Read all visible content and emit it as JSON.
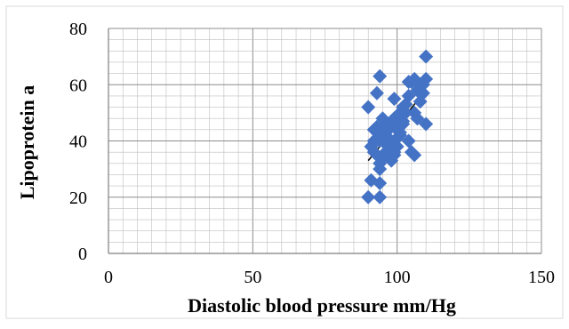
{
  "chart_data": {
    "type": "scatter",
    "title": "",
    "xlabel": "Diastolic blood pressure mm/Hg",
    "ylabel": "Lipoprotein a",
    "xlim": [
      0,
      150
    ],
    "ylim": [
      0,
      80
    ],
    "x_ticks": [
      "0",
      "50",
      "100",
      "150"
    ],
    "y_ticks": [
      "0",
      "20",
      "40",
      "60",
      "80"
    ],
    "x_major_step": 50,
    "y_major_step": 20,
    "grid": "major and minor gridlines",
    "legend": "none",
    "marker": "diamond",
    "colors": {
      "marker": "#4472C4",
      "trendline": "#000000",
      "grid": "#bfbfbf",
      "axis": "#7f7f7f"
    },
    "series": [
      {
        "x": [
          90,
          91,
          92,
          93,
          94,
          95,
          96,
          97,
          98,
          99,
          100,
          101,
          102,
          103,
          104,
          105,
          106,
          107,
          108,
          109,
          110,
          91,
          92,
          93,
          94,
          95,
          96,
          97,
          98,
          99,
          100,
          101,
          102,
          103,
          104,
          105,
          106,
          107,
          108,
          109,
          110,
          92,
          93,
          94,
          95,
          96,
          97,
          98,
          99,
          100,
          101,
          102,
          104,
          106,
          108,
          93,
          94,
          95,
          96,
          97,
          98,
          99,
          100,
          90,
          94,
          110,
          94
        ],
        "y": [
          20,
          26,
          40,
          35,
          30,
          45,
          42,
          38,
          47,
          55,
          44,
          50,
          47,
          53,
          56,
          61,
          62,
          58,
          54,
          60,
          70,
          38,
          44,
          41,
          32,
          34,
          36,
          40,
          33,
          35,
          48,
          42,
          46,
          50,
          40,
          36,
          35,
          48,
          60,
          57,
          46,
          36,
          45,
          40,
          42,
          39,
          44,
          46,
          48,
          38,
          43,
          52,
          61,
          50,
          58,
          57,
          63,
          48,
          42,
          44,
          40,
          36,
          41,
          52,
          25,
          62,
          20
        ]
      }
    ],
    "trendline": {
      "x": [
        90,
        110
      ],
      "y": [
        33,
        58
      ]
    }
  }
}
